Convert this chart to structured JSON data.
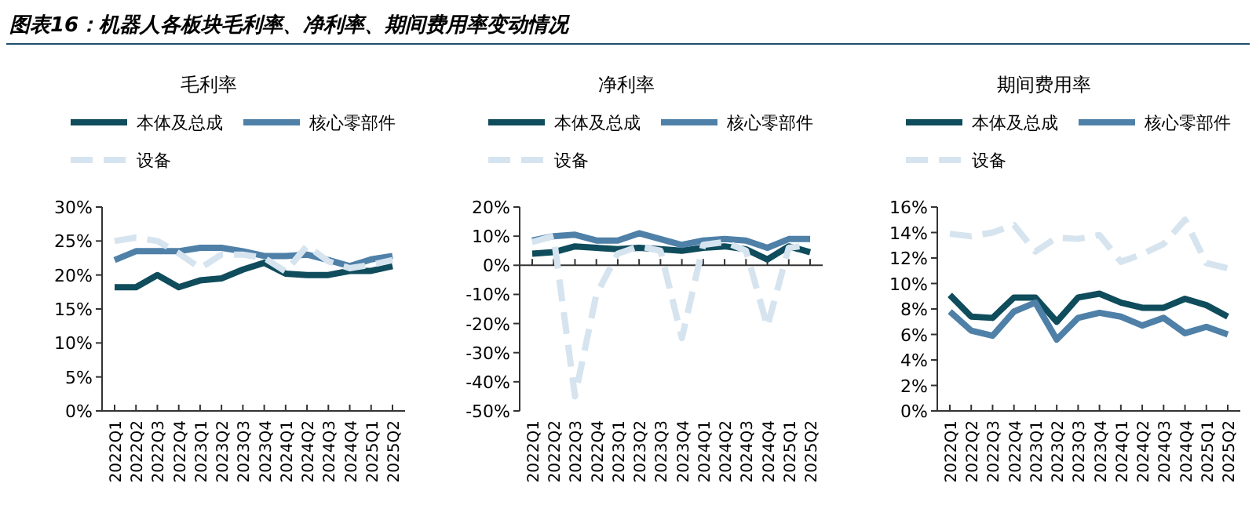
{
  "chart_data": [
    {
      "type": "line",
      "title": "毛利率",
      "annotations": [
        "图表16：机器人各板块毛利率、净利率、期间费用率变动情况"
      ],
      "categories": [
        "2022Q1",
        "2022Q2",
        "2022Q3",
        "2022Q4",
        "2023Q1",
        "2023Q2",
        "2023Q3",
        "2023Q4",
        "2024Q1",
        "2024Q2",
        "2024Q3",
        "2024Q4",
        "2025Q1",
        "2025Q2"
      ],
      "series": [
        {
          "name": "本体及总成",
          "color": "#0f4c5c",
          "values": [
            18.2,
            18.2,
            20,
            18.2,
            19.2,
            19.5,
            20.8,
            21.8,
            20.2,
            20,
            20,
            20.6,
            20.6,
            21.3
          ]
        },
        {
          "name": "核心零部件",
          "color": "#4f80a8",
          "values": [
            22.2,
            23.5,
            23.5,
            23.5,
            24,
            24,
            23.5,
            22.8,
            22.8,
            23,
            22.2,
            21.3,
            22.3,
            22.8
          ]
        },
        {
          "name": "设备",
          "color": "#d6e4ef",
          "line_style": "dashed",
          "values": [
            25,
            25.5,
            25,
            23.2,
            21,
            23,
            23,
            22.5,
            20.5,
            24.3,
            22,
            21,
            21.5,
            22.2
          ]
        }
      ],
      "ylim": [
        0,
        30
      ],
      "yticks": [
        {
          "value": 0,
          "label": "0%"
        },
        {
          "value": 5,
          "label": "5%"
        },
        {
          "value": 10,
          "label": "10%"
        },
        {
          "value": 15,
          "label": "15%"
        },
        {
          "value": 20,
          "label": "20%"
        },
        {
          "value": 25,
          "label": "25%"
        },
        {
          "value": 30,
          "label": "30%"
        }
      ],
      "legend": "top",
      "grid": false,
      "line_style": "solid",
      "marker": "none"
    },
    {
      "type": "line",
      "title": "净利率",
      "categories": [
        "2022Q1",
        "2022Q2",
        "2022Q3",
        "2022Q4",
        "2023Q1",
        "2023Q2",
        "2023Q3",
        "2023Q4",
        "2024Q1",
        "2024Q2",
        "2024Q3",
        "2024Q4",
        "2025Q1",
        "2025Q2"
      ],
      "series": [
        {
          "name": "本体及总成",
          "color": "#0f4c5c",
          "values": [
            4,
            4.5,
            6.5,
            6,
            5.5,
            6,
            5.5,
            5,
            6,
            6.5,
            5.5,
            2,
            6.5,
            4.5
          ]
        },
        {
          "name": "核心零部件",
          "color": "#4f80a8",
          "values": [
            8.5,
            10,
            10.5,
            8.5,
            8.5,
            11,
            9,
            7,
            8.5,
            9,
            8.5,
            6,
            9,
            9
          ]
        },
        {
          "name": "设备",
          "color": "#d6e4ef",
          "line_style": "dashed",
          "values": [
            8,
            10,
            -45,
            -10,
            4,
            6.5,
            5,
            -25,
            7,
            8,
            5,
            -21,
            6,
            7
          ]
        }
      ],
      "ylim": [
        -50,
        20
      ],
      "yticks": [
        {
          "value": -50,
          "label": "-50%"
        },
        {
          "value": -40,
          "label": "-40%"
        },
        {
          "value": -30,
          "label": "-30%"
        },
        {
          "value": -20,
          "label": "-20%"
        },
        {
          "value": -10,
          "label": "-10%"
        },
        {
          "value": 0,
          "label": "0%"
        },
        {
          "value": 10,
          "label": "10%"
        },
        {
          "value": 20,
          "label": "20%"
        }
      ],
      "legend": "top",
      "line_style": "solid",
      "marker": "none"
    },
    {
      "type": "line",
      "title": "期间费用率",
      "categories": [
        "2022Q1",
        "2022Q2",
        "2022Q3",
        "2022Q4",
        "2023Q1",
        "2023Q2",
        "2023Q3",
        "2023Q4",
        "2024Q1",
        "2024Q2",
        "2024Q3",
        "2024Q4",
        "2025Q1",
        "2025Q2"
      ],
      "series": [
        {
          "name": "本体及总成",
          "color": "#0f4c5c",
          "values": [
            9.1,
            7.4,
            7.3,
            8.9,
            8.9,
            7,
            8.9,
            9.2,
            8.5,
            8.1,
            8.1,
            8.8,
            8.3,
            7.4
          ]
        },
        {
          "name": "核心零部件",
          "color": "#4f80a8",
          "values": [
            7.8,
            6.3,
            5.9,
            7.8,
            8.5,
            5.6,
            7.3,
            7.7,
            7.4,
            6.7,
            7.3,
            6.1,
            6.6,
            6
          ]
        },
        {
          "name": "设备",
          "color": "#d6e4ef",
          "line_style": "dashed",
          "values": [
            13.9,
            13.7,
            14,
            14.6,
            12.5,
            13.6,
            13.5,
            13.8,
            11.7,
            12.3,
            13.1,
            15,
            11.6,
            11.2
          ]
        }
      ],
      "ylim": [
        0,
        16
      ],
      "yticks": [
        {
          "value": 0,
          "label": "0%"
        },
        {
          "value": 2,
          "label": "2%"
        },
        {
          "value": 4,
          "label": "4%"
        },
        {
          "value": 6,
          "label": "6%"
        },
        {
          "value": 8,
          "label": "8%"
        },
        {
          "value": 10,
          "label": "10%"
        },
        {
          "value": 12,
          "label": "12%"
        },
        {
          "value": 14,
          "label": "14%"
        },
        {
          "value": 16,
          "label": "16%"
        }
      ],
      "legend": "top",
      "grid": false,
      "line_style": "solid",
      "marker": "none"
    }
  ]
}
